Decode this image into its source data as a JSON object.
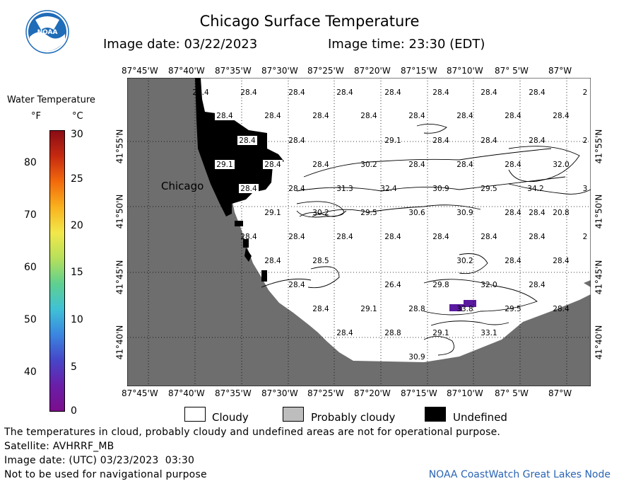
{
  "header": {
    "title": "Chicago Surface Temperature",
    "image_date_label": "Image date: 03/22/2023",
    "image_time_label": "Image time: 23:30 (EDT)"
  },
  "logo": {
    "text": "NOAA",
    "color": "#1f6cb8"
  },
  "legend": {
    "title": "Water Temperature",
    "unit_f": "°F",
    "unit_c": "°C",
    "f_ticks": [
      "80",
      "70",
      "60",
      "50",
      "40"
    ],
    "c_ticks": [
      "30",
      "25",
      "20",
      "15",
      "10",
      "5",
      "0"
    ],
    "colorbar": [
      "#8a0c16",
      "#c62a10",
      "#f36a0c",
      "#f9b21e",
      "#f2e84a",
      "#b7e05a",
      "#5fd08f",
      "#3fc1d6",
      "#3a86e0",
      "#4646c8",
      "#6a1ea8",
      "#7a0e8c"
    ]
  },
  "map": {
    "lon_labels": [
      "87°45'W",
      "87°40'W",
      "87°35'W",
      "87°30'W",
      "87°25'W",
      "87°20'W",
      "87°15'W",
      "87°10'W",
      "87° 5'W",
      "87°W"
    ],
    "lat_labels": [
      "41°55'N",
      "41°50'N",
      "41°45'N",
      "41°40'N"
    ],
    "city": "Chicago",
    "temperature_labels": [
      "28.4",
      "28.4",
      "28.4",
      "28.4",
      "28.4",
      "28.4",
      "28.4",
      "28.4",
      "2",
      "28.4",
      "28.4",
      "28.4",
      "28.4",
      "28.4",
      "28.4",
      "28.4",
      "28.4",
      "28.4",
      "28.4",
      "29.1",
      "28.4",
      "28.4",
      "28.4",
      "2",
      "29.1",
      "28.4",
      "28.4",
      "30.2",
      "28.4",
      "28.4",
      "28.4",
      "32.0",
      "28.4",
      "28.4",
      "31.3",
      "32.4",
      "30.9",
      "29.5",
      "34.2",
      "3",
      "29.1",
      "30.2",
      "29.5",
      "30.6",
      "30.9",
      "28.4",
      "28.4",
      "20.8",
      "28.4",
      "28.4",
      "28.4",
      "28.4",
      "28.4",
      "28.4",
      "28.4",
      "2",
      "28.4",
      "28.5",
      "30.2",
      "28.4",
      "28.4",
      "28.4",
      "26.4",
      "29.8",
      "32.0",
      "28.4",
      "28.4",
      "29.1",
      "28.8",
      "33.8",
      "29.5",
      "28.4",
      "28.4",
      "28.8",
      "29.1",
      "33.1",
      "30.9"
    ],
    "colors": {
      "land": "#6e6e6e",
      "undefined": "#000000",
      "warm_patch": "#5a1aa0",
      "grid": "#000000"
    }
  },
  "key": {
    "cloudy": "Cloudy",
    "probably_cloudy": "Probably cloudy",
    "undefined": "Undefined",
    "cloudy_color": "#ffffff",
    "probably_cloudy_color": "#bdbdbd",
    "undefined_color": "#000000"
  },
  "footer": {
    "disclaimer": "The temperatures in cloud, probably cloudy and undefined areas are not for operational purpose.",
    "satellite": "Satellite: AVHRRF_MB",
    "utc_date": "Image date: (UTC) 03/23/2023  03:30",
    "nav_warning": "Not to be used for navigational purpose",
    "credit": "NOAA CoastWatch Great Lakes Node"
  }
}
